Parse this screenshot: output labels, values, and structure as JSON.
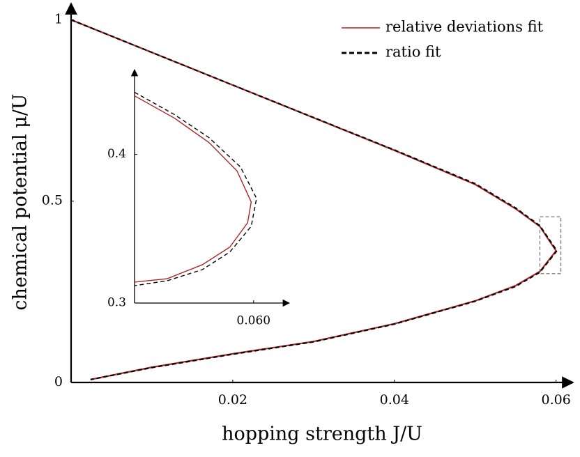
{
  "chart_data": [
    {
      "type": "line",
      "xlabel": "hopping strength J/U",
      "ylabel": "chemical potential μ/U",
      "xlim": [
        0,
        0.0621
      ],
      "ylim": [
        0,
        1.045
      ],
      "xticks": [
        0.02,
        0.04,
        0.06
      ],
      "yticks": [
        0,
        0.5,
        1
      ],
      "legend": "upper right",
      "series": [
        {
          "name": "relative deviations fit",
          "color": "#b22222",
          "dashed": false,
          "x": [
            0,
            0.02,
            0.04,
            0.05,
            0.055,
            0.058,
            0.06,
            0.058,
            0.055,
            0.05,
            0.04,
            0.03,
            0.02,
            0.01,
            0.0024
          ],
          "values": [
            1,
            0.82,
            0.64,
            0.546,
            0.479,
            0.43,
            0.363,
            0.306,
            0.267,
            0.225,
            0.162,
            0.113,
            0.079,
            0.042,
            0.008
          ]
        },
        {
          "name": "ratio fit",
          "color": "#000000",
          "dashed": true,
          "x": [
            0,
            0.02,
            0.04,
            0.05,
            0.055,
            0.058,
            0.0601,
            0.058,
            0.055,
            0.05,
            0.04,
            0.03,
            0.02,
            0.01,
            0.0024
          ],
          "values": [
            1,
            0.82,
            0.641,
            0.548,
            0.481,
            0.432,
            0.363,
            0.304,
            0.265,
            0.224,
            0.161,
            0.112,
            0.078,
            0.041,
            0.008
          ]
        }
      ]
    },
    {
      "type": "line",
      "xlim": [
        0.058,
        0.0606
      ],
      "ylim": [
        0.3,
        0.457
      ],
      "xticks": [
        {
          "value": 0.06,
          "label": "0.060"
        }
      ],
      "yticks": [
        0.3,
        0.4
      ],
      "series": [
        {
          "color": "#b22222",
          "dashed": false,
          "x": [
            0.058,
            0.05867,
            0.05925,
            0.05972,
            0.05996,
            0.0599,
            0.0596,
            0.05914,
            0.05855,
            0.058
          ],
          "values": [
            0.4394,
            0.4244,
            0.408,
            0.389,
            0.368,
            0.354,
            0.3376,
            0.3258,
            0.3164,
            0.3141
          ]
        },
        {
          "color": "#000000",
          "dashed": true,
          "x": [
            0.058,
            0.05867,
            0.05925,
            0.05978,
            0.06005,
            0.05996,
            0.0596,
            0.05914,
            0.05855,
            0.058
          ],
          "values": [
            0.4418,
            0.4268,
            0.4113,
            0.3915,
            0.3704,
            0.3516,
            0.3343,
            0.3225,
            0.315,
            0.3117
          ]
        }
      ]
    }
  ]
}
